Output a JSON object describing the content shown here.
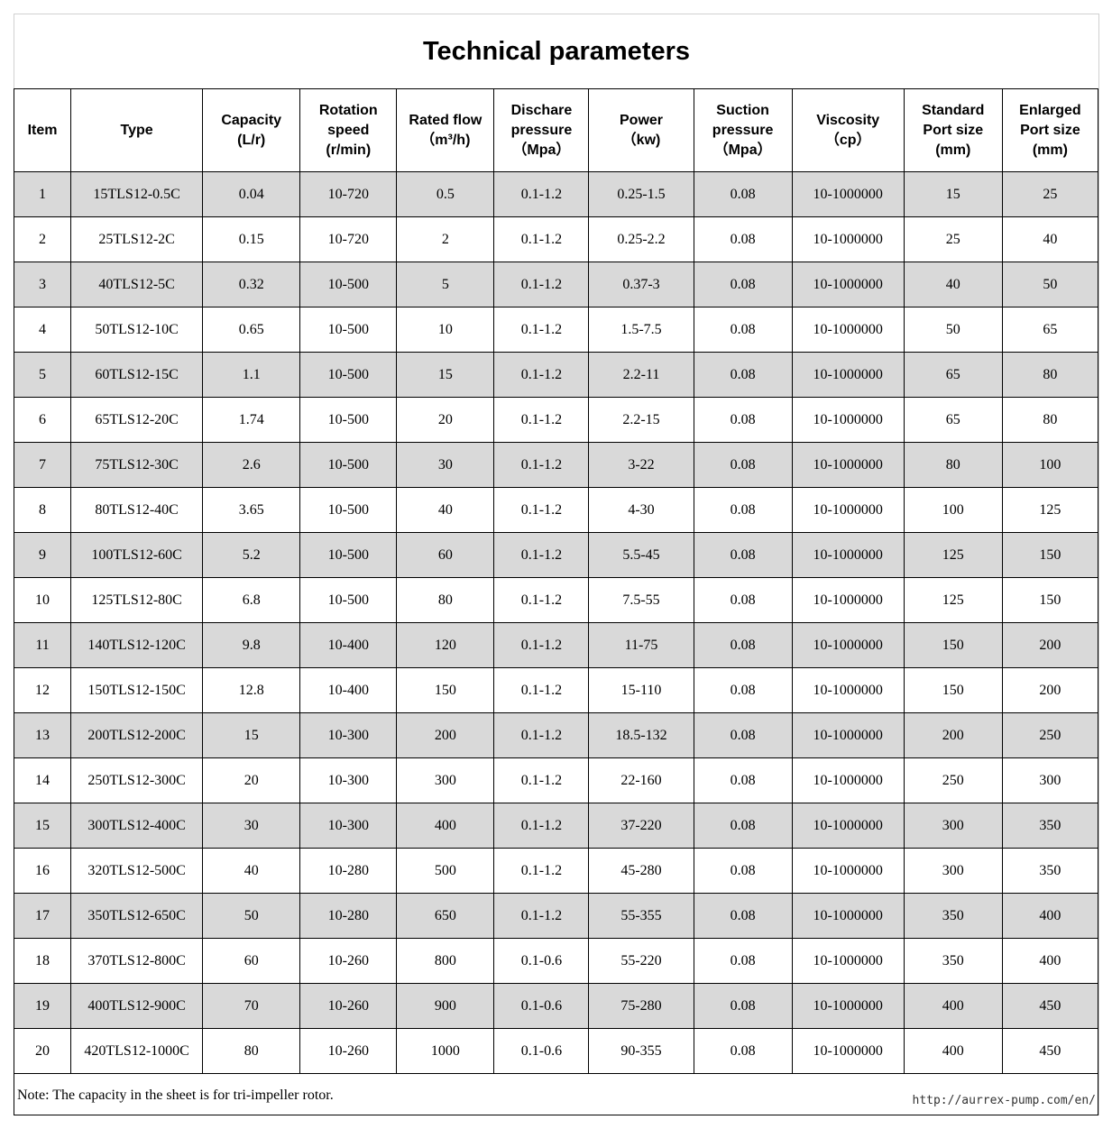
{
  "title": "Technical parameters",
  "columns": [
    [
      "Item"
    ],
    [
      "Type"
    ],
    [
      "Capacity",
      "(L/r)"
    ],
    [
      "Rotation",
      "speed",
      "(r/min)"
    ],
    [
      "Rated flow",
      "（m³/h)"
    ],
    [
      "Dischare",
      "pressure",
      "（Mpa）"
    ],
    [
      "Power",
      "（kw)"
    ],
    [
      "Suction",
      "pressure",
      "（Mpa）"
    ],
    [
      "Viscosity",
      "（cp）"
    ],
    [
      "Standard",
      "Port size",
      "(mm)"
    ],
    [
      "Enlarged",
      "Port size",
      "(mm)"
    ]
  ],
  "rows": [
    [
      "1",
      "15TLS12-0.5C",
      "0.04",
      "10-720",
      "0.5",
      "0.1-1.2",
      "0.25-1.5",
      "0.08",
      "10-1000000",
      "15",
      "25"
    ],
    [
      "2",
      "25TLS12-2C",
      "0.15",
      "10-720",
      "2",
      "0.1-1.2",
      "0.25-2.2",
      "0.08",
      "10-1000000",
      "25",
      "40"
    ],
    [
      "3",
      "40TLS12-5C",
      "0.32",
      "10-500",
      "5",
      "0.1-1.2",
      "0.37-3",
      "0.08",
      "10-1000000",
      "40",
      "50"
    ],
    [
      "4",
      "50TLS12-10C",
      "0.65",
      "10-500",
      "10",
      "0.1-1.2",
      "1.5-7.5",
      "0.08",
      "10-1000000",
      "50",
      "65"
    ],
    [
      "5",
      "60TLS12-15C",
      "1.1",
      "10-500",
      "15",
      "0.1-1.2",
      "2.2-11",
      "0.08",
      "10-1000000",
      "65",
      "80"
    ],
    [
      "6",
      "65TLS12-20C",
      "1.74",
      "10-500",
      "20",
      "0.1-1.2",
      "2.2-15",
      "0.08",
      "10-1000000",
      "65",
      "80"
    ],
    [
      "7",
      "75TLS12-30C",
      "2.6",
      "10-500",
      "30",
      "0.1-1.2",
      "3-22",
      "0.08",
      "10-1000000",
      "80",
      "100"
    ],
    [
      "8",
      "80TLS12-40C",
      "3.65",
      "10-500",
      "40",
      "0.1-1.2",
      "4-30",
      "0.08",
      "10-1000000",
      "100",
      "125"
    ],
    [
      "9",
      "100TLS12-60C",
      "5.2",
      "10-500",
      "60",
      "0.1-1.2",
      "5.5-45",
      "0.08",
      "10-1000000",
      "125",
      "150"
    ],
    [
      "10",
      "125TLS12-80C",
      "6.8",
      "10-500",
      "80",
      "0.1-1.2",
      "7.5-55",
      "0.08",
      "10-1000000",
      "125",
      "150"
    ],
    [
      "11",
      "140TLS12-120C",
      "9.8",
      "10-400",
      "120",
      "0.1-1.2",
      "11-75",
      "0.08",
      "10-1000000",
      "150",
      "200"
    ],
    [
      "12",
      "150TLS12-150C",
      "12.8",
      "10-400",
      "150",
      "0.1-1.2",
      "15-110",
      "0.08",
      "10-1000000",
      "150",
      "200"
    ],
    [
      "13",
      "200TLS12-200C",
      "15",
      "10-300",
      "200",
      "0.1-1.2",
      "18.5-132",
      "0.08",
      "10-1000000",
      "200",
      "250"
    ],
    [
      "14",
      "250TLS12-300C",
      "20",
      "10-300",
      "300",
      "0.1-1.2",
      "22-160",
      "0.08",
      "10-1000000",
      "250",
      "300"
    ],
    [
      "15",
      "300TLS12-400C",
      "30",
      "10-300",
      "400",
      "0.1-1.2",
      "37-220",
      "0.08",
      "10-1000000",
      "300",
      "350"
    ],
    [
      "16",
      "320TLS12-500C",
      "40",
      "10-280",
      "500",
      "0.1-1.2",
      "45-280",
      "0.08",
      "10-1000000",
      "300",
      "350"
    ],
    [
      "17",
      "350TLS12-650C",
      "50",
      "10-280",
      "650",
      "0.1-1.2",
      "55-355",
      "0.08",
      "10-1000000",
      "350",
      "400"
    ],
    [
      "18",
      "370TLS12-800C",
      "60",
      "10-260",
      "800",
      "0.1-0.6",
      "55-220",
      "0.08",
      "10-1000000",
      "350",
      "400"
    ],
    [
      "19",
      "400TLS12-900C",
      "70",
      "10-260",
      "900",
      "0.1-0.6",
      "75-280",
      "0.08",
      "10-1000000",
      "400",
      "450"
    ],
    [
      "20",
      "420TLS12-1000C",
      "80",
      "10-260",
      "1000",
      "0.1-0.6",
      "90-355",
      "0.08",
      "10-1000000",
      "400",
      "450"
    ]
  ],
  "note": "Note:  The capacity in the sheet  is for tri-impeller rotor.",
  "watermark": "http://aurrex-pump.com/en/",
  "colors": {
    "stripe": "#d9d9d9",
    "border": "#000000"
  }
}
